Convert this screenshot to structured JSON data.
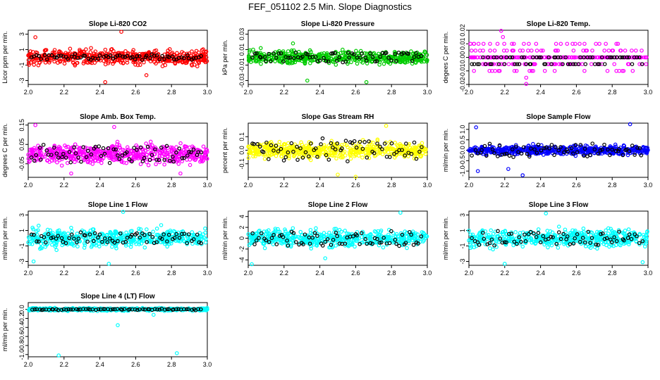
{
  "figure_title": "FEF_051102  2.5 Min. Slope Diagnostics",
  "colors": {
    "co2": "#ff0000",
    "pressure": "#00cc00",
    "temp": "#ff00ff",
    "box_temp": "#ff00ff",
    "rh": "#ffff00",
    "sample_flow": "#0000ff",
    "line_flow": "#00ffff",
    "highlight": "#000000"
  },
  "chart_data": [
    {
      "type": "scatter",
      "title": "Slope Li-820 CO2",
      "xlabel": "",
      "ylabel": "Licor ppm per min.",
      "xlim": [
        2.0,
        3.0
      ],
      "ylim": [
        -3.5,
        3.5
      ],
      "xticks": [
        "2.0",
        "2.2",
        "2.4",
        "2.6",
        "2.8",
        "3.0"
      ],
      "yticks": [
        "-3",
        "-1",
        "1",
        "3"
      ],
      "color_key": "co2",
      "n_points": 520,
      "spread": 0.9,
      "outliers": [
        [
          2.52,
          3.3
        ],
        [
          2.43,
          -3.2
        ],
        [
          2.04,
          2.6
        ],
        [
          2.66,
          -2.3
        ]
      ],
      "black_levels": [
        0.0,
        0.2,
        -0.2
      ],
      "black_spread": 0.25
    },
    {
      "type": "scatter",
      "title": "Slope Li-820 Pressure",
      "xlabel": "",
      "ylabel": "kPa per min.",
      "xlim": [
        2.0,
        3.0
      ],
      "ylim": [
        -0.035,
        0.035
      ],
      "xticks": [
        "2.0",
        "2.2",
        "2.4",
        "2.6",
        "2.8",
        "3.0"
      ],
      "yticks": [
        "-0.03",
        "-0.01",
        "0.01",
        "0.03"
      ],
      "color_key": "pressure",
      "n_points": 480,
      "spread": 0.008,
      "outliers": [
        [
          2.33,
          -0.03
        ],
        [
          2.66,
          -0.032
        ],
        [
          2.07,
          0.012
        ],
        [
          2.25,
          0.018
        ]
      ],
      "black_levels": [
        0.0,
        0.005,
        -0.005
      ],
      "black_spread": 0.002
    },
    {
      "type": "scatter",
      "title": "Slope Li-820 Temp.",
      "xlabel": "",
      "ylabel": "degees C per min.",
      "xlim": [
        2.0,
        3.0
      ],
      "ylim": [
        -0.02,
        0.02
      ],
      "xticks": [
        "2.0",
        "2.2",
        "2.4",
        "2.6",
        "2.8",
        "3.0"
      ],
      "yticks": [
        "-0.02",
        "-0.01",
        "0.00",
        "0.01",
        "0.02"
      ],
      "color_key": "temp",
      "discrete": [
        -0.01,
        -0.005,
        0.0,
        0.005,
        0.01
      ],
      "n_points": 300,
      "outliers": [
        [
          2.19,
          0.015
        ],
        [
          2.32,
          -0.015
        ],
        [
          2.18,
          0.02
        ],
        [
          2.32,
          -0.02
        ]
      ],
      "black_levels": [
        0.0,
        -0.005
      ],
      "black_spread": 0.0
    },
    {
      "type": "scatter",
      "title": "Slope Amb. Box Temp.",
      "xlabel": "",
      "ylabel": "degrees C per min.",
      "xlim": [
        2.0,
        3.0
      ],
      "ylim": [
        -0.12,
        0.16
      ],
      "xticks": [
        "2.0",
        "2.2",
        "2.4",
        "2.6",
        "2.8",
        "3.0"
      ],
      "yticks": [
        "-0.05",
        "0.05",
        "0.15"
      ],
      "color_key": "box_temp",
      "n_points": 560,
      "spread": 0.045,
      "outliers": [
        [
          2.04,
          0.15
        ],
        [
          2.85,
          -0.1
        ],
        [
          2.24,
          -0.1
        ],
        [
          2.48,
          0.14
        ]
      ],
      "black_levels": [
        0.0,
        0.03,
        -0.03
      ],
      "black_spread": 0.03
    },
    {
      "type": "scatter",
      "title": "Slope Gas Stream RH",
      "xlabel": "",
      "ylabel": "percent per min.",
      "xlim": [
        2.0,
        3.0
      ],
      "ylim": [
        -0.2,
        0.2
      ],
      "xticks": [
        "2.0",
        "2.2",
        "2.4",
        "2.6",
        "2.8",
        "3.0"
      ],
      "yticks": [
        "-0.1",
        "0.0",
        "0.1"
      ],
      "color_key": "rh",
      "n_points": 520,
      "spread": 0.055,
      "outliers": [
        [
          2.5,
          -0.18
        ],
        [
          2.77,
          0.18
        ],
        [
          2.6,
          -0.2
        ]
      ],
      "black_levels": [
        0.05,
        -0.05,
        0.0
      ],
      "black_spread": 0.05
    },
    {
      "type": "scatter",
      "title": "Slope Sample Flow",
      "xlabel": "",
      "ylabel": "ml/min per min.",
      "xlim": [
        2.0,
        3.0
      ],
      "ylim": [
        -1.3,
        1.3
      ],
      "xticks": [
        "2.0",
        "2.2",
        "2.4",
        "2.6",
        "2.8",
        "3.0"
      ],
      "yticks": [
        "-1.0",
        "-0.5",
        "0.0",
        "0.5",
        "1.0"
      ],
      "color_key": "sample_flow",
      "n_points": 520,
      "spread": 0.2,
      "outliers": [
        [
          2.9,
          1.25
        ],
        [
          2.04,
          1.1
        ],
        [
          2.3,
          -1.2
        ],
        [
          2.22,
          -0.9
        ],
        [
          2.05,
          -1.0
        ]
      ],
      "black_levels": [
        0.0,
        0.2,
        -0.2
      ],
      "black_spread": 0.2
    },
    {
      "type": "scatter",
      "title": "Slope Line 1 Flow",
      "xlabel": "",
      "ylabel": "ml/min per min.",
      "xlim": [
        2.0,
        3.0
      ],
      "ylim": [
        -3.5,
        3.5
      ],
      "xticks": [
        "2.0",
        "2.2",
        "2.4",
        "2.6",
        "2.8",
        "3.0"
      ],
      "yticks": [
        "-3",
        "-1",
        "1",
        "3"
      ],
      "color_key": "line_flow",
      "n_points": 480,
      "spread": 1.1,
      "outliers": [
        [
          2.53,
          3.4
        ],
        [
          2.45,
          -3.3
        ],
        [
          2.03,
          -3.0
        ]
      ],
      "black_levels": [
        0.0,
        0.5,
        -0.5
      ],
      "black_spread": 0.3
    },
    {
      "type": "scatter",
      "title": "Slope Line 2 Flow",
      "xlabel": "",
      "ylabel": "ml/min per min.",
      "xlim": [
        2.0,
        3.0
      ],
      "ylim": [
        -5.0,
        5.0
      ],
      "xticks": [
        "2.0",
        "2.2",
        "2.4",
        "2.6",
        "2.8",
        "3.0"
      ],
      "yticks": [
        "-4",
        "-2",
        "0",
        "2",
        "4"
      ],
      "color_key": "line_flow",
      "n_points": 480,
      "spread": 1.5,
      "outliers": [
        [
          2.02,
          -4.8
        ],
        [
          2.85,
          4.7
        ],
        [
          2.43,
          -3.7
        ]
      ],
      "black_levels": [
        0.0,
        1.0,
        -1.0
      ],
      "black_spread": 0.8
    },
    {
      "type": "scatter",
      "title": "Slope Line 3 Flow",
      "xlabel": "",
      "ylabel": "ml/min per min.",
      "xlim": [
        2.0,
        3.0
      ],
      "ylim": [
        -3.5,
        3.5
      ],
      "xticks": [
        "2.0",
        "2.2",
        "2.4",
        "2.6",
        "2.8",
        "3.0"
      ],
      "yticks": [
        "-3",
        "-1",
        "1",
        "3"
      ],
      "color_key": "line_flow",
      "n_points": 480,
      "spread": 1.1,
      "outliers": [
        [
          2.2,
          -3.3
        ],
        [
          2.43,
          3.2
        ],
        [
          2.97,
          -3.1
        ]
      ],
      "black_levels": [
        0.0,
        0.6,
        -0.6
      ],
      "black_spread": 0.5
    },
    {
      "type": "scatter",
      "title": "Slope Line 4 (LT) Flow",
      "xlabel": "",
      "ylabel": "ml/min per min.",
      "xlim": [
        2.0,
        3.0
      ],
      "ylim": [
        -1.05,
        0.15
      ],
      "xticks": [
        "2.0",
        "2.2",
        "2.4",
        "2.6",
        "2.8",
        "3.0"
      ],
      "yticks": [
        "-1.0",
        "-0.8",
        "-0.6",
        "-0.4",
        "-0.2",
        "0.0"
      ],
      "color_key": "line_flow",
      "n_points": 440,
      "spread": 0.03,
      "outliers": [
        [
          2.17,
          -1.02
        ],
        [
          2.83,
          -0.97
        ],
        [
          2.5,
          -0.35
        ],
        [
          2.7,
          -0.12
        ]
      ],
      "black_levels": [
        0.0
      ],
      "black_spread": 0.025
    }
  ]
}
